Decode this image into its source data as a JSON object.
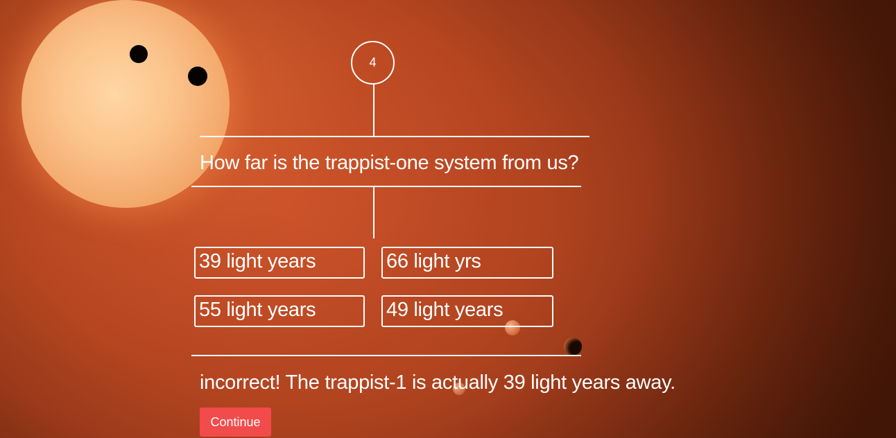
{
  "step": {
    "number": "4"
  },
  "question": {
    "text": "How far is the trappist-one system from us?"
  },
  "options": [
    {
      "label": "39 light years"
    },
    {
      "label": "66 light yrs"
    },
    {
      "label": "55 light years"
    },
    {
      "label": "49 light years"
    }
  ],
  "feedback": {
    "text": "incorrect! The trappist-1 is actually 39 light years away."
  },
  "actions": {
    "continue_label": "Continue"
  },
  "colors": {
    "accent": "#f24b4b",
    "background": "#b24420",
    "foreground": "#ffffff"
  }
}
